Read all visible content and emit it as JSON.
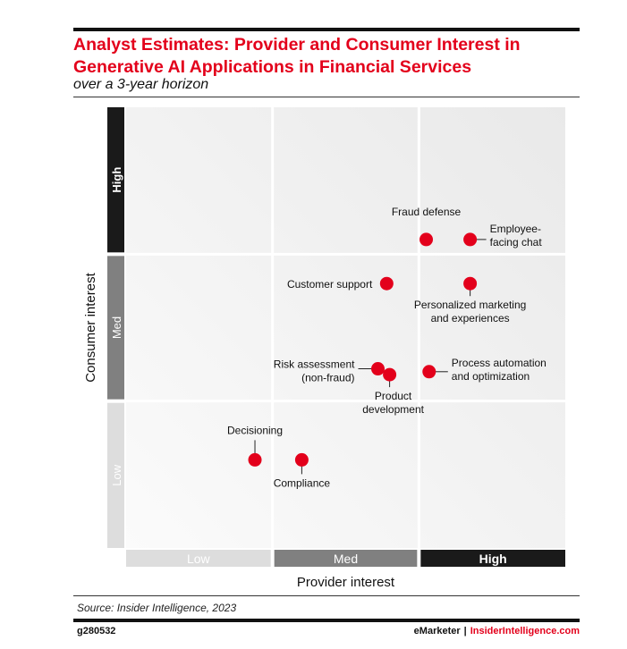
{
  "header": {
    "title": "Analyst Estimates: Provider and Consumer Interest in Generative AI Applications in Financial Services",
    "subtitle": "over a 3-year horizon"
  },
  "chart_data": {
    "type": "scatter",
    "title": "Analyst Estimates: Provider and Consumer Interest in Generative AI Applications in Financial Services",
    "subtitle": "over a 3-year horizon",
    "xlabel": "Provider interest",
    "ylabel": "Consumer interest",
    "xlim": [
      0,
      3
    ],
    "ylim": [
      0,
      3
    ],
    "x_levels": [
      "Low",
      "Med",
      "High"
    ],
    "y_levels": [
      "Low",
      "Med",
      "High"
    ],
    "grid": true,
    "point_color": "#e3001b",
    "level_colors": {
      "x": [
        "#dddddd",
        "#808080",
        "#1a1a1a"
      ],
      "y": [
        "#dddddd",
        "#808080",
        "#1a1a1a"
      ]
    },
    "points": [
      {
        "label": "Fraud defense",
        "x": 2.05,
        "y": 2.1
      },
      {
        "label": "Employee- facing chat",
        "x": 2.35,
        "y": 2.1
      },
      {
        "label": "Customer support",
        "x": 1.78,
        "y": 1.8
      },
      {
        "label": "Personalized marketing and experiences",
        "x": 2.35,
        "y": 1.8
      },
      {
        "label": "Risk assessment (non-fraud)",
        "x": 1.72,
        "y": 1.22
      },
      {
        "label": "Product development",
        "x": 1.8,
        "y": 1.18
      },
      {
        "label": "Process automation and optimization",
        "x": 2.07,
        "y": 1.2
      },
      {
        "label": "Decisioning",
        "x": 0.88,
        "y": 0.6
      },
      {
        "label": "Compliance",
        "x": 1.2,
        "y": 0.6
      }
    ]
  },
  "footer": {
    "source": "Source: Insider Intelligence, 2023",
    "code": "g280532",
    "brand": "eMarketer",
    "separator": "|",
    "site": "InsiderIntelligence.com"
  }
}
